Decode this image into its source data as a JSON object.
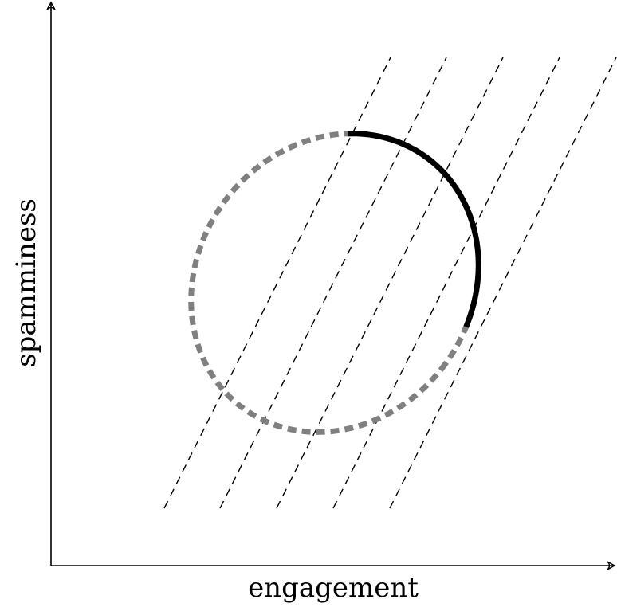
{
  "axes": {
    "x_label": "engagement",
    "y_label": "spamminess"
  },
  "level_lines": {
    "count": 5
  },
  "region": {
    "shape": "ellipse",
    "boundary_style": "dashed",
    "highlighted_arc_style": "solid"
  },
  "colors": {
    "axis": "#000000",
    "level_lines": "#000000",
    "ellipse_dotted": "#808080",
    "ellipse_solid": "#000000"
  }
}
